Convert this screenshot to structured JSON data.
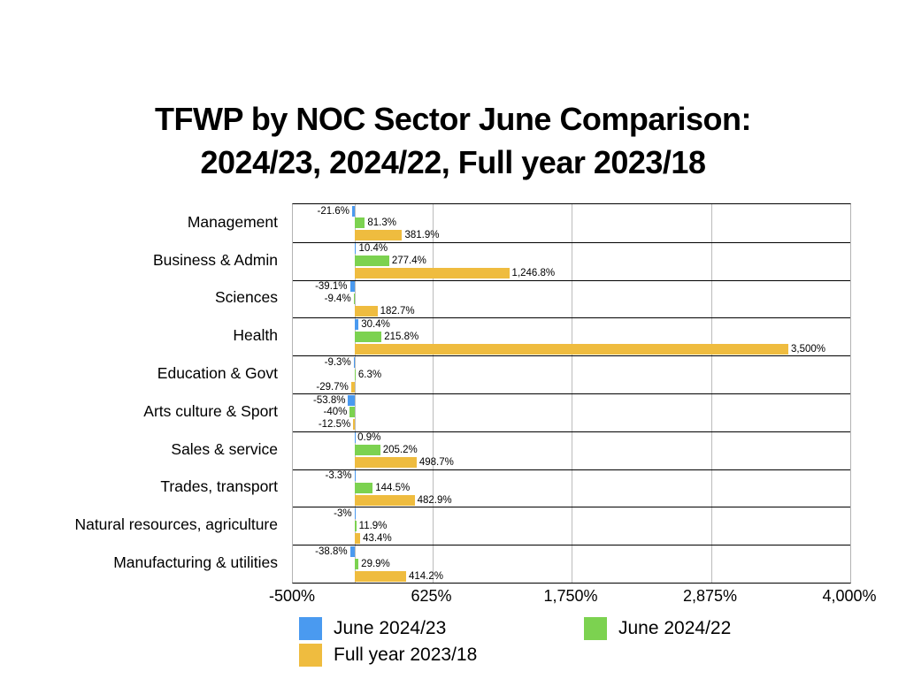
{
  "chart_data": {
    "type": "bar",
    "orientation": "horizontal",
    "title_line1": "TFWP by NOC Sector June Comparison:",
    "title_line2": "2024/23, 2024/22, Full year 2023/18",
    "categories": [
      "Management",
      "Business & Admin",
      "Sciences",
      "Health",
      "Education & Govt",
      "Arts culture & Sport",
      "Sales & service",
      "Trades, transport",
      "Natural resources, agriculture",
      "Manufacturing & utilities"
    ],
    "series": [
      {
        "name": "June 2024/23",
        "color": "#4A9AF0",
        "values": [
          -21.6,
          10.4,
          -39.1,
          30.4,
          -9.3,
          -53.8,
          0.9,
          -3.3,
          -3,
          -38.8
        ],
        "labels": [
          "-21.6%",
          "10.4%",
          "-39.1%",
          "30.4%",
          "-9.3%",
          "-53.8%",
          "0.9%",
          "-3.3%",
          "-3%",
          "-38.8%"
        ]
      },
      {
        "name": "June 2024/22",
        "color": "#7CD250",
        "values": [
          81.3,
          277.4,
          -9.4,
          215.8,
          6.3,
          -40,
          205.2,
          144.5,
          11.9,
          29.9
        ],
        "labels": [
          "81.3%",
          "277.4%",
          "-9.4%",
          "215.8%",
          "6.3%",
          "-40%",
          "205.2%",
          "144.5%",
          "11.9%",
          "29.9%"
        ]
      },
      {
        "name": "Full year 2023/18",
        "color": "#EFBC3F",
        "values": [
          381.9,
          1246.8,
          182.7,
          3500,
          -29.7,
          -12.5,
          498.7,
          482.9,
          43.4,
          414.2
        ],
        "labels": [
          "381.9%",
          "1,246.8%",
          "182.7%",
          "3,500%",
          "-29.7%",
          "-12.5%",
          "498.7%",
          "482.9%",
          "43.4%",
          "414.2%"
        ]
      }
    ],
    "x_axis": {
      "min": -500,
      "max": 4000,
      "tick_labels": [
        "-500%",
        "625%",
        "1,750%",
        "2,875%",
        "4,000%"
      ],
      "tick_values": [
        -500,
        625,
        1750,
        2875,
        4000
      ],
      "gridline_values": [
        0,
        625,
        1750,
        2875
      ],
      "grid": true
    },
    "legend": {
      "position": "bottom",
      "entries": [
        "June 2024/23",
        "June 2024/22",
        "Full year 2023/18"
      ]
    },
    "background": "#ffffff"
  }
}
